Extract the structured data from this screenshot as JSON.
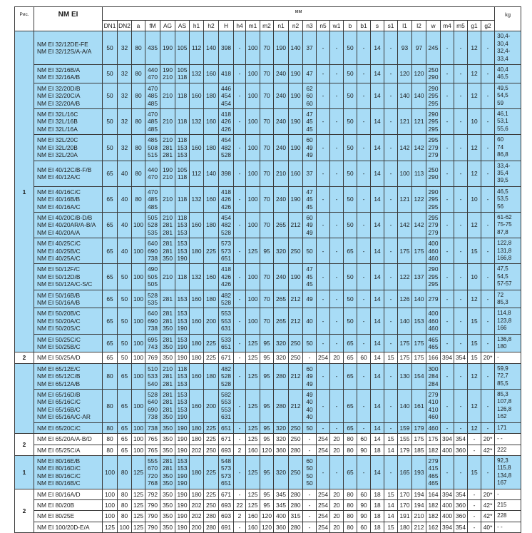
{
  "header": {
    "fig_label": "Рис.",
    "model_label": "NM EI",
    "mm_label": "мм",
    "kg_label": "kg",
    "columns": [
      "DN1",
      "DN2",
      "a",
      "fM",
      "AG",
      "AS",
      "h1",
      "h2",
      "H",
      "h4",
      "m1",
      "m2",
      "n1",
      "n2",
      "n3",
      "n5",
      "w1",
      "b",
      "b1",
      "s",
      "s1",
      "l1",
      "l2",
      "w",
      "m4",
      "m5",
      "g1",
      "g2"
    ]
  },
  "colors": {
    "highlight_row": "#a8dcf6",
    "plain_row": "#ffffff",
    "grid": "#3a3a3a"
  },
  "rows": [
    {
      "fig": "1",
      "blue": true,
      "models": "NM EI  32/12DE-FE\nNM EI  32/12S/A-A/A",
      "cells": [
        "50",
        "32",
        "80",
        "435",
        "190",
        "105",
        "112",
        "140",
        "398",
        "-",
        "100",
        "70",
        "190",
        "140",
        "37",
        "-",
        "-",
        "50",
        "-",
        "14",
        "-",
        "93",
        "97",
        "245",
        "-",
        "-",
        "12",
        "-"
      ],
      "kg": "30,4-30,4\n32,4-33,4"
    },
    {
      "blue": true,
      "models": "NM EI  32/16B/A\nNM EI  32/16A/B",
      "cells": [
        "50",
        "32",
        "80",
        "440\n470",
        "190\n210",
        "105\n118",
        "132",
        "160",
        "418",
        "-",
        "100",
        "70",
        "240",
        "190",
        "47",
        "-",
        "-",
        "50",
        "-",
        "14",
        "-",
        "120",
        "120",
        "250\n290",
        "-",
        "-",
        "12",
        "-"
      ],
      "kg": "40,4\n46,5"
    },
    {
      "blue": true,
      "models": "NM EI  32/20D/B\nNM EI  32/20C/A\nNM EI  32/20A/B",
      "cells": [
        "50",
        "32",
        "80",
        "470\n485\n485",
        "210",
        "118",
        "160",
        "180",
        "446\n454\n454",
        "-",
        "100",
        "70",
        "240",
        "190",
        "62\n60\n60",
        "-",
        "-",
        "50",
        "-",
        "14",
        "-",
        "140",
        "140",
        "290\n295\n295",
        "-",
        "-",
        "12",
        "-"
      ],
      "kg": "49,5\n54,5\n59"
    },
    {
      "blue": true,
      "models": "NM EI  32L/16C\nNM EI  32L/16B\nNM EI  32L/16A",
      "cells": [
        "50",
        "32",
        "80",
        "470\n485\n485",
        "210",
        "118",
        "132",
        "160",
        "418\n426\n426",
        "-",
        "100",
        "70",
        "240",
        "190",
        "47\n45\n45",
        "-",
        "-",
        "50",
        "-",
        "14",
        "-",
        "121",
        "121",
        "290\n295\n295",
        "-",
        "-",
        "10",
        "-"
      ],
      "kg": "46,1\n53,1\n55,6"
    },
    {
      "blue": true,
      "models": "NM EI  32L/20C\nNM EI  32L/20B\nNM EI  32L/20A",
      "cells": [
        "50",
        "32",
        "80",
        "485\n508\n515",
        "210\n281\n281",
        "118\n153\n153",
        "160",
        "180",
        "454\n482\n528",
        "-",
        "100",
        "70",
        "240",
        "190",
        "60\n49\n49",
        "-",
        "-",
        "50",
        "-",
        "14",
        "-",
        "142",
        "142",
        "295\n279\n279",
        "-",
        "-",
        "12",
        "-"
      ],
      "kg": "60\n74\n86,8"
    },
    {
      "blue": true,
      "models": "NM EI  40/12C/B-F/B\nNM EI  40/12A/C",
      "cells": [
        "65",
        "40",
        "80",
        "440\n470",
        "190\n210",
        "105\n118",
        "112",
        "140",
        "398",
        "-",
        "100",
        "70",
        "210",
        "160",
        "37",
        "-",
        "-",
        "50",
        "-",
        "14",
        "-",
        "100",
        "113",
        "250\n290",
        "-",
        "-",
        "12",
        "-"
      ],
      "kg": "33,4-35,4\n39,5"
    },
    {
      "blue": true,
      "models": "NM EI  40/16C/C\nNM EI  40/16B/B\nNM EI  40/16A/C",
      "cells": [
        "65",
        "40",
        "80",
        "470\n485\n485",
        "210",
        "118",
        "132",
        "160",
        "418\n426\n426",
        "-",
        "100",
        "70",
        "240",
        "190",
        "47\n45\n45",
        "-",
        "-",
        "50",
        "-",
        "14",
        "-",
        "121",
        "122",
        "290\n295\n295",
        "-",
        "-",
        "10",
        "-"
      ],
      "kg": "46,5\n53,5\n56"
    },
    {
      "blue": true,
      "models": "NM EI  40/20C/B-D/B\nNM EI  40/20AR/A-B/A\nNM EI  40/20A/A",
      "cells": [
        "65",
        "40",
        "100",
        "505\n528\n535",
        "210\n281\n281",
        "118\n153\n153",
        "160",
        "180",
        "454\n482\n528",
        "-",
        "100",
        "70",
        "265",
        "212",
        "60\n49\n49",
        "-",
        "-",
        "50",
        "-",
        "14",
        "-",
        "142",
        "142",
        "295\n279\n279",
        "-",
        "-",
        "12",
        "-"
      ],
      "kg": "61-62\n75-75\n87,8"
    },
    {
      "blue": true,
      "models": "NM EI  40/25C/C\nNM EI  40/25B/C\nNM EI  40/25A/C",
      "cells": [
        "65",
        "40",
        "100",
        "640\n690\n738",
        "281\n281\n350",
        "153\n153\n190",
        "180",
        "225",
        "573\n573\n651",
        "-",
        "125",
        "95",
        "320",
        "250",
        "50",
        "-",
        "-",
        "65",
        "-",
        "14",
        "-",
        "175",
        "175",
        "400\n460\n460",
        "-",
        "-",
        "15",
        "-"
      ],
      "kg": "122,8\n131,8\n166,8"
    },
    {
      "blue": true,
      "models": "NM EI  50/12F/C\nNM EI  50/12D/B\nNM EI  50/12A/C-S/C",
      "cells": [
        "65",
        "50",
        "100",
        "490\n505\n505",
        "210",
        "118",
        "132",
        "160",
        "418\n426\n426",
        "-",
        "100",
        "70",
        "240",
        "190",
        "47\n45\n45",
        "-",
        "-",
        "50",
        "-",
        "14",
        "-",
        "122",
        "137",
        "290\n295\n295",
        "-",
        "-",
        "10",
        "-"
      ],
      "kg": "47,5\n54,5\n57-57"
    },
    {
      "blue": true,
      "models": "NM EI  50/16B/B\nNM EI  50/16A/B",
      "cells": [
        "65",
        "50",
        "100",
        "528\n535",
        "281",
        "153",
        "160",
        "180",
        "482\n528",
        "-",
        "100",
        "70",
        "265",
        "212",
        "49",
        "-",
        "-",
        "50",
        "-",
        "14",
        "-",
        "126",
        "140",
        "279",
        "-",
        "-",
        "12",
        "-"
      ],
      "kg": "72\n85,3"
    },
    {
      "blue": true,
      "models": "NM EI  50/20B/C\nNM EI  50/20A/C\nNM EI  50/20S/C",
      "cells": [
        "65",
        "50",
        "100",
        "640\n690\n738",
        "281\n281\n350",
        "153\n153\n190",
        "160",
        "200",
        "553\n553\n631",
        "-",
        "100",
        "70",
        "265",
        "212",
        "40",
        "-",
        "-",
        "50",
        "-",
        "14",
        "-",
        "140",
        "153",
        "400\n460\n460",
        "-",
        "-",
        "15",
        "-"
      ],
      "kg": "114,8\n123,8\n166"
    },
    {
      "blue": true,
      "models": "NM EI  50/25C/C\nNM EI  50/25B/C",
      "cells": [
        "65",
        "50",
        "100",
        "695\n743",
        "281\n350",
        "153\n190",
        "180",
        "225",
        "533\n651",
        "-",
        "125",
        "95",
        "320",
        "250",
        "50",
        "-",
        "-",
        "65",
        "-",
        "14",
        "-",
        "175",
        "175",
        "465\n465",
        "-",
        "-",
        "15",
        "-"
      ],
      "kg": "136,8\n180"
    },
    {
      "fig": "2",
      "blue": false,
      "models": "NM EI  50/25A/D",
      "cells": [
        "65",
        "50",
        "100",
        "769",
        "350",
        "190",
        "180",
        "225",
        "671",
        "-",
        "125",
        "95",
        "320",
        "250",
        "-",
        "254",
        "20",
        "65",
        "60",
        "14",
        "15",
        "175",
        "175",
        "166",
        "394",
        "354",
        "15",
        "20*"
      ],
      "kg": "-"
    },
    {
      "fig": "",
      "blue": true,
      "models": "NM EI  65/12E/C\nNM EI  65/12C/B\nNM EI  65/12A/B",
      "cells": [
        "80",
        "65",
        "100",
        "510\n533\n540",
        "210\n281\n281",
        "118\n153\n153",
        "160",
        "180",
        "482\n528\n528",
        "-",
        "125",
        "95",
        "280",
        "212",
        "60\n49\n49",
        "-",
        "-",
        "65",
        "-",
        "14",
        "-",
        "130",
        "154",
        "300\n284\n284",
        "-",
        "-",
        "12",
        "-"
      ],
      "kg": "59,9\n72,7\n85,5"
    },
    {
      "blue": true,
      "models": "NM EI  65/16D/B\nNM EI  65/16C/C\nNM EI  65/16B/C\nNM EI  65/16A/C-AR",
      "cells": [
        "80",
        "65",
        "100",
        "528\n640\n690\n738",
        "281\n281\n281\n350",
        "153\n153\n153\n190",
        "160",
        "200",
        "582\n553\n553\n631",
        "-",
        "125",
        "95",
        "280",
        "212",
        "49\n40\n40\n40",
        "-",
        "-",
        "65",
        "-",
        "14",
        "-",
        "140",
        "161",
        "279\n410\n410\n460",
        "-",
        "-",
        "12",
        "-"
      ],
      "kg": "85,3\n107,8\n126,8\n162"
    },
    {
      "blue": true,
      "models": "NM EI  65/20C/C",
      "cells": [
        "80",
        "65",
        "100",
        "738",
        "350",
        "190",
        "180",
        "225",
        "651",
        "-",
        "125",
        "95",
        "320",
        "250",
        "50",
        "-",
        "-",
        "65",
        "-",
        "14",
        "-",
        "159",
        "179",
        "460",
        "-",
        "-",
        "12",
        "-"
      ],
      "kg": "171"
    },
    {
      "fig": "2",
      "blue": false,
      "models": "NM EI  65/20A/A-B/D",
      "cells": [
        "80",
        "65",
        "100",
        "765",
        "350",
        "190",
        "180",
        "225",
        "671",
        "-",
        "125",
        "95",
        "320",
        "250",
        "-",
        "254",
        "20",
        "80",
        "60",
        "14",
        "15",
        "155",
        "175",
        "175",
        "394",
        "354",
        "-",
        "20*"
      ],
      "kg": "- -"
    },
    {
      "blue": false,
      "models": "NM EI  65/25C/A",
      "cells": [
        "80",
        "65",
        "100",
        "765",
        "350",
        "190",
        "202",
        "250",
        "693",
        "2",
        "160",
        "120",
        "360",
        "280",
        "-",
        "254",
        "20",
        "80",
        "90",
        "18",
        "14",
        "179",
        "185",
        "182",
        "400",
        "360",
        "-",
        "42*"
      ],
      "kg": "222"
    },
    {
      "fig": "1",
      "blue": true,
      "models": "NM EI  80/16E/B\nNM EI  80/16D/C\nNM EI  80/16C/C\nNM EI  80/16B/C",
      "cells": [
        "100",
        "80",
        "125",
        "555\n670\n720\n768",
        "281\n281\n350\n350",
        "153\n153\n190\n190",
        "180",
        "225",
        "548\n573\n573\n651",
        "-",
        "125",
        "95",
        "320",
        "250",
        "60\n50\n50\n50",
        "-",
        "-",
        "65",
        "-",
        "14",
        "-",
        "165",
        "193",
        "279\n415\n465\n465",
        "-",
        "-",
        "15",
        "-"
      ],
      "kg": "92,3\n115,8\n134,8\n167"
    },
    {
      "fig": "2",
      "blue": false,
      "models": "NM EI  80/16A/D",
      "cells": [
        "100",
        "80",
        "125",
        "792",
        "350",
        "190",
        "180",
        "225",
        "671",
        "-",
        "125",
        "95",
        "345",
        "280",
        "-",
        "254",
        "20",
        "80",
        "60",
        "18",
        "15",
        "170",
        "194",
        "164",
        "394",
        "354",
        "-",
        "20*"
      ],
      "kg": "-"
    },
    {
      "blue": false,
      "models": "NM EI  80/20B",
      "cells": [
        "100",
        "80",
        "125",
        "790",
        "350",
        "190",
        "202",
        "250",
        "693",
        "22",
        "125",
        "95",
        "345",
        "280",
        "-",
        "254",
        "20",
        "80",
        "90",
        "18",
        "14",
        "170",
        "194",
        "182",
        "400",
        "360",
        "-",
        "42*"
      ],
      "kg": "215"
    },
    {
      "blue": false,
      "models": "NM EI  80/25E",
      "cells": [
        "100",
        "80",
        "125",
        "790",
        "350",
        "190",
        "202",
        "280",
        "693",
        "2",
        "160",
        "120",
        "400",
        "315",
        "-",
        "254",
        "20",
        "80",
        "90",
        "18",
        "14",
        "191",
        "210",
        "182",
        "400",
        "360",
        "-",
        "42*"
      ],
      "kg": "228"
    },
    {
      "blue": false,
      "models": "NM EI 100/20D-E/A",
      "cells": [
        "125",
        "100",
        "125",
        "790",
        "350",
        "190",
        "200",
        "280",
        "691",
        "-",
        "160",
        "120",
        "360",
        "280",
        "-",
        "254",
        "20",
        "80",
        "60",
        "18",
        "15",
        "180",
        "212",
        "162",
        "394",
        "354",
        "-",
        "40*"
      ],
      "kg": "- -"
    }
  ]
}
